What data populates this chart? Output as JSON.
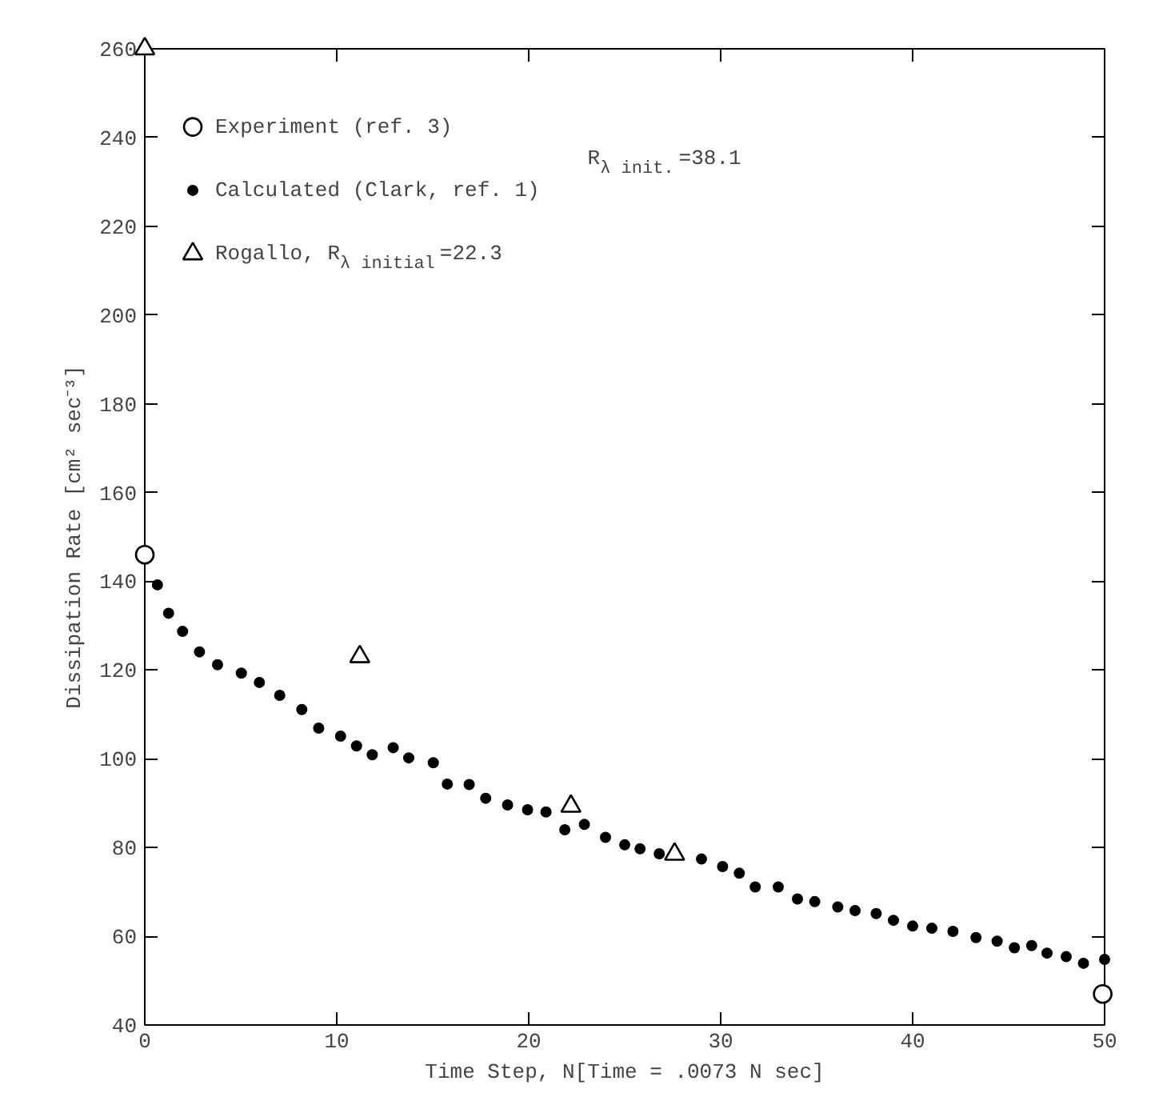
{
  "chart_data": {
    "type": "scatter",
    "xlabel": "Time Step, N[Time = .0073 N sec]",
    "ylabel": "Dissipation Rate [cm² sec⁻³]",
    "xlim": [
      0,
      50
    ],
    "ylim": [
      40,
      260
    ],
    "xticks": [
      0,
      10,
      20,
      30,
      40,
      50
    ],
    "yticks": [
      40,
      60,
      80,
      100,
      120,
      140,
      160,
      180,
      200,
      220,
      240,
      260
    ],
    "grid": false,
    "legend": "top left",
    "series": [
      {
        "name": "Experiment (ref. 3)",
        "color": "#000000",
        "marker": "circle_open",
        "x": [
          0,
          49.9
        ],
        "values": [
          146,
          47
        ]
      },
      {
        "name": "Calculated (Clark, ref. 1)",
        "color": "#000000",
        "marker": "circle",
        "x": [
          0.66,
          1.24,
          1.97,
          2.85,
          3.79,
          5.03,
          5.97,
          7.03,
          8.18,
          9.06,
          10.2,
          11.03,
          11.85,
          12.94,
          13.75,
          15.03,
          15.76,
          16.9,
          17.76,
          18.9,
          19.94,
          20.9,
          21.88,
          22.9,
          24.0,
          25.0,
          25.8,
          26.8,
          29.0,
          30.1,
          30.97,
          31.8,
          33.0,
          34.0,
          34.9,
          36.1,
          37.0,
          38.1,
          39.0,
          40.0,
          41.0,
          42.1,
          43.3,
          44.4,
          45.3,
          46.2,
          47.0,
          48.0,
          48.9,
          50.0
        ],
        "values": [
          139.2,
          132.8,
          128.7,
          124.1,
          121.2,
          119.3,
          117.2,
          114.3,
          111.1,
          106.9,
          105.1,
          102.9,
          100.9,
          102.5,
          100.2,
          99.1,
          94.3,
          94.2,
          91.1,
          89.6,
          88.5,
          88.0,
          84.0,
          85.2,
          82.3,
          80.6,
          79.7,
          78.6,
          77.4,
          75.7,
          74.2,
          71.1,
          71.1,
          68.4,
          67.8,
          66.6,
          65.8,
          65.1,
          63.6,
          62.3,
          61.8,
          61.1,
          59.7,
          58.9,
          57.4,
          57.9,
          56.2,
          55.4,
          53.9,
          54.8
        ]
      },
      {
        "name": "Rogallo, R$_{λ initial}$ =22.3",
        "color": "#000000",
        "marker": "triangle",
        "x": [
          0,
          11.2,
          22.2,
          27.6
        ],
        "values": [
          260,
          123,
          89.3,
          78.5
        ]
      }
    ],
    "annotations": [
      "R$_{λ init.}$ =38.1"
    ]
  }
}
